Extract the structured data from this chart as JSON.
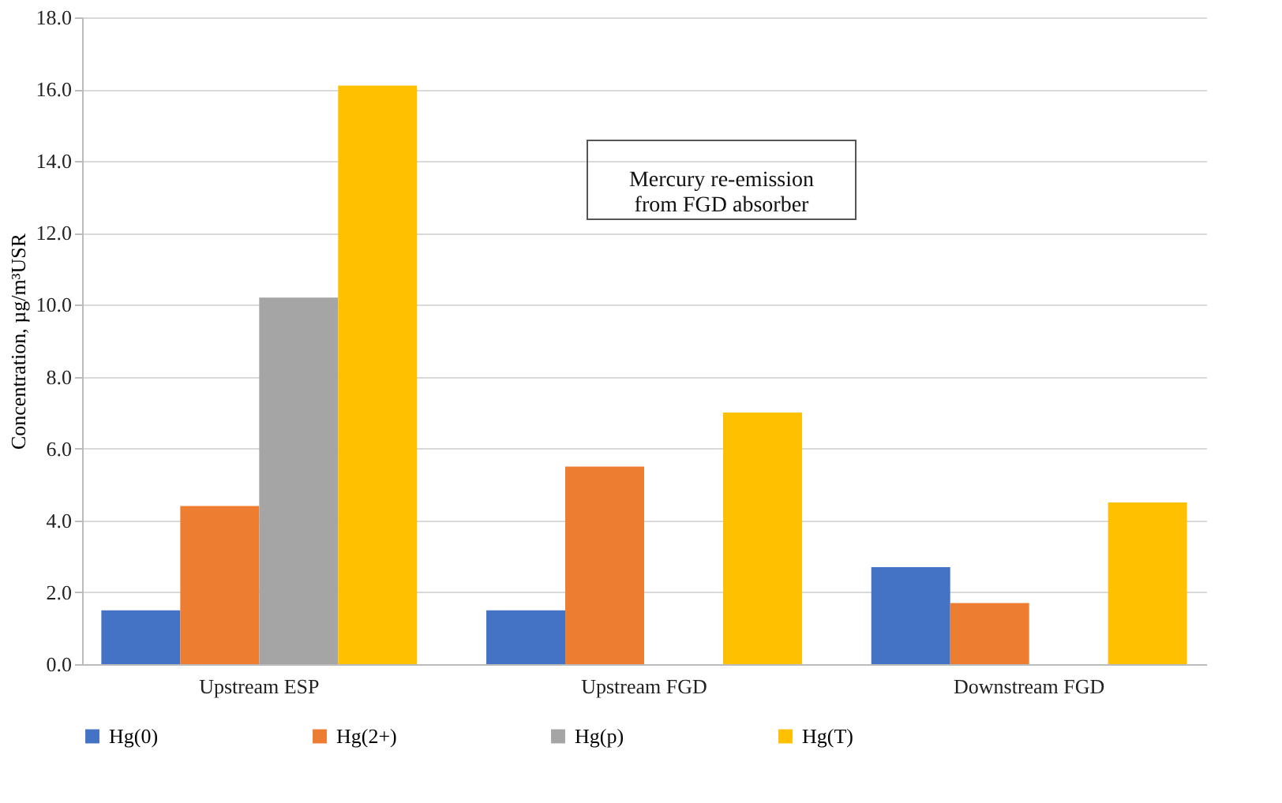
{
  "chart_data": {
    "type": "bar",
    "categories": [
      "Upstream ESP",
      "Upstream FGD",
      "Downstream FGD"
    ],
    "series": [
      {
        "name": "Hg(0)",
        "color": "#4472c4",
        "values": [
          1.5,
          1.5,
          2.7
        ]
      },
      {
        "name": "Hg(2+)",
        "color": "#ed7d31",
        "values": [
          4.4,
          5.5,
          1.7
        ]
      },
      {
        "name": "Hg(p)",
        "color": "#a5a5a5",
        "values": [
          10.2,
          null,
          null
        ]
      },
      {
        "name": "Hg(T)",
        "color": "#ffc000",
        "values": [
          16.1,
          7.0,
          4.5
        ]
      }
    ],
    "ylabel": "Concentration, µg/m³USR",
    "ylim": [
      0,
      18
    ],
    "yticks": [
      {
        "value": 0,
        "label": "0.0"
      },
      {
        "value": 2,
        "label": "2.0"
      },
      {
        "value": 4,
        "label": "4.0"
      },
      {
        "value": 6,
        "label": "6.0"
      },
      {
        "value": 8,
        "label": "8.0"
      },
      {
        "value": 10,
        "label": "10.0"
      },
      {
        "value": 12,
        "label": "12.0"
      },
      {
        "value": 14,
        "label": "14.0"
      },
      {
        "value": 16,
        "label": "16.0"
      },
      {
        "value": 18,
        "label": "18.0"
      }
    ],
    "annotations": [
      "Mercury re-emission\nfrom FGD absorber"
    ],
    "grid": "y",
    "legend": "bottom"
  }
}
